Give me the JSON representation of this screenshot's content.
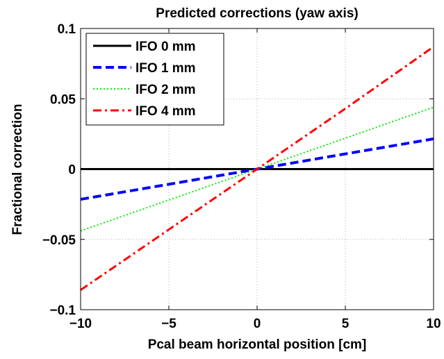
{
  "chart_data": {
    "type": "line",
    "title": "Predicted corrections (yaw axis)",
    "xlabel": "Pcal beam horizontal position [cm]",
    "ylabel": "Fractional correction",
    "xlim": [
      -10,
      10
    ],
    "ylim": [
      -0.1,
      0.1
    ],
    "xticks": [
      -10,
      -5,
      0,
      5,
      10
    ],
    "xtick_labels": [
      "−10",
      "−5",
      "0",
      "5",
      "10"
    ],
    "yticks": [
      -0.1,
      -0.05,
      0,
      0.05,
      0.1
    ],
    "ytick_labels": [
      "−0.1",
      "−0.05",
      "0",
      "0.05",
      "0.1"
    ],
    "grid": true,
    "legend_position": "top-left",
    "x": [
      -10,
      -5,
      0,
      5,
      10
    ],
    "series": [
      {
        "name": "IFO 0 mm",
        "color": "#000000",
        "style": "solid",
        "values": [
          0,
          0,
          0,
          0,
          0
        ]
      },
      {
        "name": "IFO 1 mm",
        "color": "#0000ff",
        "style": "dashed",
        "values": [
          -0.0215,
          -0.0108,
          0,
          0.0108,
          0.0215
        ]
      },
      {
        "name": "IFO 2 mm",
        "color": "#00ee00",
        "style": "dotted",
        "values": [
          -0.044,
          -0.022,
          0,
          0.022,
          0.044
        ]
      },
      {
        "name": "IFO 4 mm",
        "color": "#ff0000",
        "style": "dashdot",
        "values": [
          -0.086,
          -0.043,
          0,
          0.043,
          0.087
        ]
      }
    ]
  }
}
